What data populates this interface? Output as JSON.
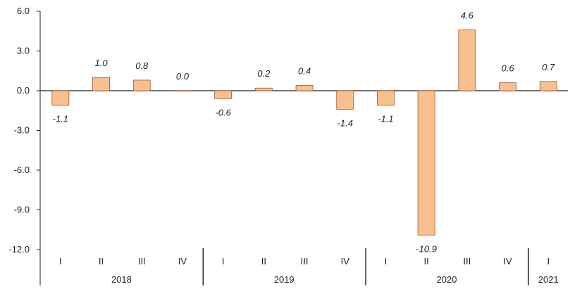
{
  "chart_data": {
    "type": "bar",
    "categories": [
      "I",
      "II",
      "III",
      "IV",
      "I",
      "II",
      "III",
      "IV",
      "I",
      "II",
      "III",
      "IV",
      "I"
    ],
    "groups": [
      {
        "label": "2018",
        "count": 4
      },
      {
        "label": "2019",
        "count": 4
      },
      {
        "label": "2020",
        "count": 4
      },
      {
        "label": "2021",
        "count": 1
      }
    ],
    "values": [
      -1.1,
      1.0,
      0.8,
      0.0,
      -0.6,
      0.2,
      0.4,
      -1.4,
      -1.1,
      -10.9,
      4.6,
      0.6,
      0.7
    ],
    "value_labels": [
      "-1.1",
      "1.0",
      "0.8",
      "0.0",
      "-0.6",
      "0.2",
      "0.4",
      "-1.4",
      "-1.1",
      "-10.9",
      "4.6",
      "0.6",
      "0.7"
    ],
    "yticks": [
      "6.0",
      "3.0",
      "0.0",
      "-3.0",
      "-6.0",
      "-9.0",
      "-12.0"
    ],
    "ylim": [
      -12,
      6
    ],
    "grid": false,
    "legend": "none",
    "bar_fill": "#f9c08f",
    "bar_stroke": "#a0522d",
    "axis_color": "#222222"
  }
}
